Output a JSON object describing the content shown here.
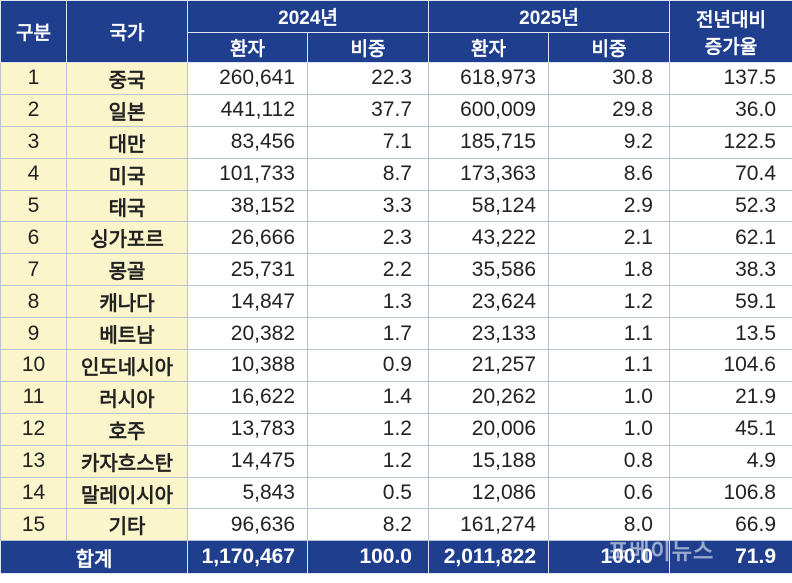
{
  "headers": {
    "rank": "구분",
    "country": "국가",
    "year1": "2024년",
    "year2": "2025년",
    "growth_line1": "전년대비",
    "growth_line2": "증가율",
    "patients": "환자",
    "share": "비중"
  },
  "rows": [
    {
      "rank": "1",
      "country": "중국",
      "p2024": "260,641",
      "s2024": "22.3",
      "p2025": "618,973",
      "s2025": "30.8",
      "growth": "137.5"
    },
    {
      "rank": "2",
      "country": "일본",
      "p2024": "441,112",
      "s2024": "37.7",
      "p2025": "600,009",
      "s2025": "29.8",
      "growth": "36.0"
    },
    {
      "rank": "3",
      "country": "대만",
      "p2024": "83,456",
      "s2024": "7.1",
      "p2025": "185,715",
      "s2025": "9.2",
      "growth": "122.5"
    },
    {
      "rank": "4",
      "country": "미국",
      "p2024": "101,733",
      "s2024": "8.7",
      "p2025": "173,363",
      "s2025": "8.6",
      "growth": "70.4"
    },
    {
      "rank": "5",
      "country": "태국",
      "p2024": "38,152",
      "s2024": "3.3",
      "p2025": "58,124",
      "s2025": "2.9",
      "growth": "52.3"
    },
    {
      "rank": "6",
      "country": "싱가포르",
      "p2024": "26,666",
      "s2024": "2.3",
      "p2025": "43,222",
      "s2025": "2.1",
      "growth": "62.1"
    },
    {
      "rank": "7",
      "country": "몽골",
      "p2024": "25,731",
      "s2024": "2.2",
      "p2025": "35,586",
      "s2025": "1.8",
      "growth": "38.3"
    },
    {
      "rank": "8",
      "country": "캐나다",
      "p2024": "14,847",
      "s2024": "1.3",
      "p2025": "23,624",
      "s2025": "1.2",
      "growth": "59.1"
    },
    {
      "rank": "9",
      "country": "베트남",
      "p2024": "20,382",
      "s2024": "1.7",
      "p2025": "23,133",
      "s2025": "1.1",
      "growth": "13.5"
    },
    {
      "rank": "10",
      "country": "인도네시아",
      "p2024": "10,388",
      "s2024": "0.9",
      "p2025": "21,257",
      "s2025": "1.1",
      "growth": "104.6"
    },
    {
      "rank": "11",
      "country": "러시아",
      "p2024": "16,622",
      "s2024": "1.4",
      "p2025": "20,262",
      "s2025": "1.0",
      "growth": "21.9"
    },
    {
      "rank": "12",
      "country": "호주",
      "p2024": "13,783",
      "s2024": "1.2",
      "p2025": "20,006",
      "s2025": "1.0",
      "growth": "45.1"
    },
    {
      "rank": "13",
      "country": "카자흐스탄",
      "p2024": "14,475",
      "s2024": "1.2",
      "p2025": "15,188",
      "s2025": "0.8",
      "growth": "4.9"
    },
    {
      "rank": "14",
      "country": "말레이시아",
      "p2024": "5,843",
      "s2024": "0.5",
      "p2025": "12,086",
      "s2025": "0.6",
      "growth": "106.8"
    },
    {
      "rank": "15",
      "country": "기타",
      "p2024": "96,636",
      "s2024": "8.2",
      "p2025": "161,274",
      "s2025": "8.0",
      "growth": "66.9"
    }
  ],
  "total": {
    "label": "합계",
    "p2024": "1,170,467",
    "s2024": "100.0",
    "p2025": "2,011,822",
    "s2025": "100.0",
    "growth": "71.9"
  },
  "watermark": "포베이뉴스"
}
